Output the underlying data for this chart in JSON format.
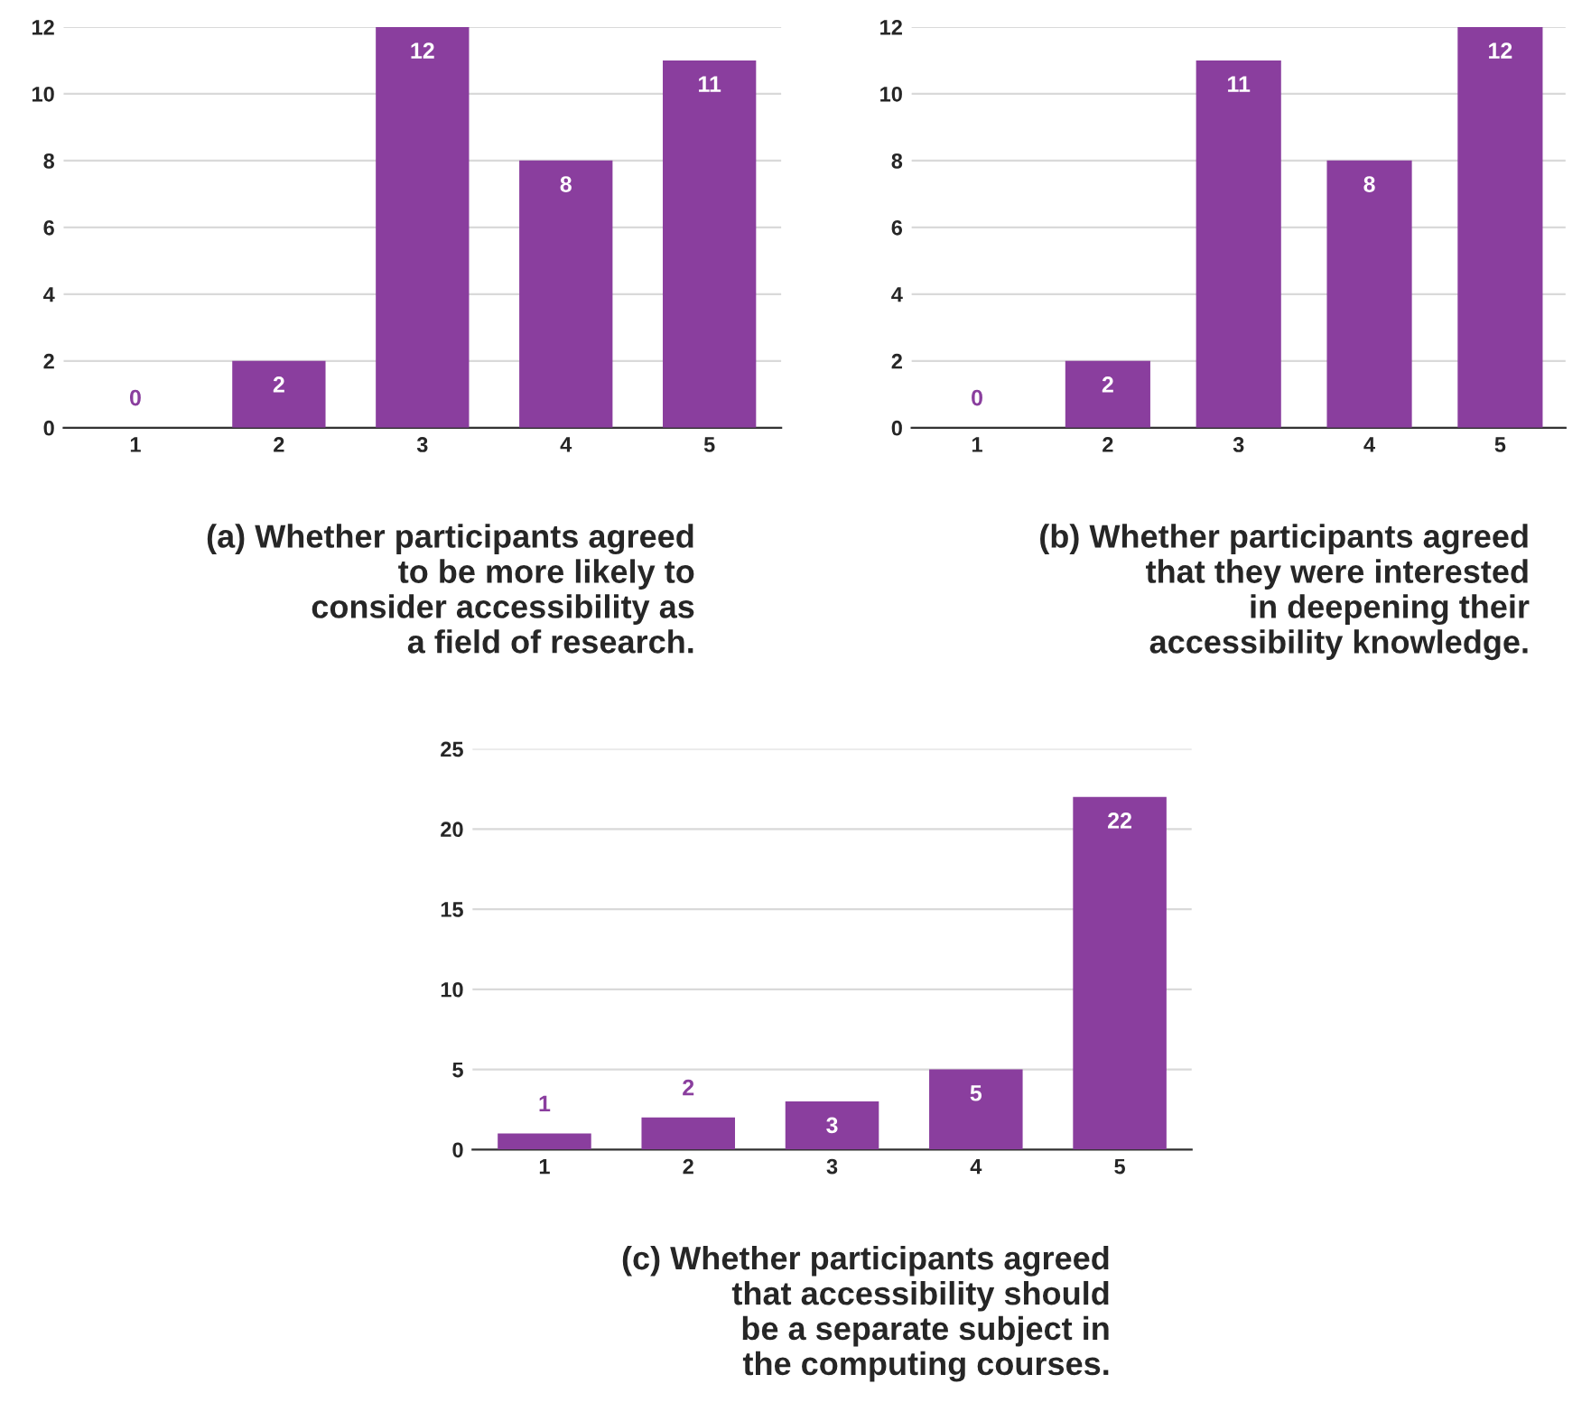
{
  "chart_data": [
    {
      "type": "bar",
      "categories": [
        "1",
        "2",
        "3",
        "4",
        "5"
      ],
      "values": [
        0,
        2,
        12,
        8,
        11
      ],
      "color": "#8a3e9e",
      "ylim": [
        0,
        12
      ],
      "yticks": [
        0,
        2,
        4,
        6,
        8,
        10,
        12
      ],
      "grid": "y",
      "data_labels": true,
      "legend": false,
      "annotations": [
        "(a) Whether participants agreed\nto be more likely to\nconsider accessibility as\na field of research."
      ]
    },
    {
      "type": "bar",
      "categories": [
        "1",
        "2",
        "3",
        "4",
        "5"
      ],
      "values": [
        0,
        2,
        11,
        8,
        12
      ],
      "color": "#8a3e9e",
      "ylim": [
        0,
        12
      ],
      "yticks": [
        0,
        2,
        4,
        6,
        8,
        10,
        12
      ],
      "grid": "y",
      "data_labels": true,
      "legend": false,
      "annotations": [
        "(b) Whether participants agreed\nthat they were interested\nin deepening their\naccessibility knowledge."
      ]
    },
    {
      "type": "bar",
      "categories": [
        "1",
        "2",
        "3",
        "4",
        "5"
      ],
      "values": [
        1,
        2,
        3,
        5,
        22
      ],
      "color": "#8a3e9e",
      "ylim": [
        0,
        25
      ],
      "yticks": [
        0,
        5,
        10,
        15,
        20,
        25
      ],
      "grid": "y",
      "data_labels": true,
      "legend": false,
      "annotations": [
        "(c) Whether participants agreed\nthat accessibility should\nbe a separate subject in\nthe computing courses."
      ]
    }
  ]
}
